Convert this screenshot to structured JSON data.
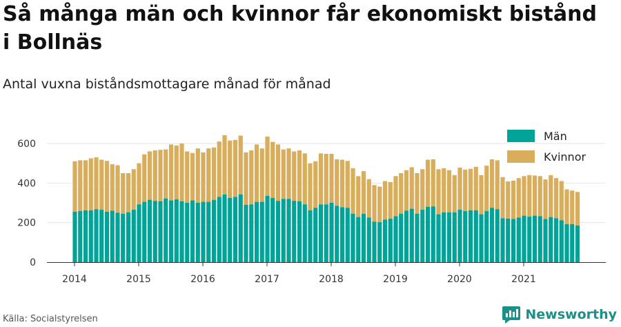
{
  "header": {
    "title": "Så många män och kvinnor får ekonomiskt bistånd i Bollnäs",
    "subtitle": "Antal vuxna biståndsmottagare månad för månad"
  },
  "footer": {
    "source": "Källa: Socialstyrelsen",
    "brand": "Newsworthy"
  },
  "colors": {
    "men": "#00a398",
    "women": "#d8ad5c",
    "grid": "#e6e6e6",
    "brand": "#1b8f88"
  },
  "chart_data": {
    "type": "bar",
    "stacked": true,
    "title": "",
    "xlabel": "",
    "ylabel": "",
    "ylim": [
      0,
      700
    ],
    "yticks": [
      "0",
      "200",
      "400",
      "600"
    ],
    "xticks": [
      "2014",
      "2015",
      "2016",
      "2017",
      "2018",
      "2019",
      "2020",
      "2021"
    ],
    "x_start": "2014-01",
    "legend_position": "top-right",
    "grid": true,
    "series": [
      {
        "name": "Män",
        "values": [
          255,
          258,
          262,
          262,
          268,
          265,
          255,
          260,
          250,
          245,
          252,
          265,
          292,
          305,
          315,
          310,
          308,
          322,
          312,
          318,
          308,
          300,
          312,
          300,
          305,
          305,
          315,
          330,
          342,
          325,
          330,
          342,
          290,
          292,
          305,
          305,
          335,
          325,
          310,
          320,
          320,
          310,
          308,
          292,
          262,
          275,
          292,
          292,
          300,
          285,
          278,
          275,
          245,
          228,
          245,
          225,
          205,
          202,
          215,
          220,
          232,
          245,
          260,
          270,
          245,
          265,
          280,
          282,
          242,
          252,
          252,
          252,
          265,
          258,
          262,
          262,
          242,
          258,
          275,
          268,
          222,
          220,
          218,
          225,
          235,
          230,
          235,
          232,
          218,
          228,
          222,
          212,
          192,
          192,
          185
        ],
        "totals": [
          510,
          515,
          515,
          525,
          530,
          518,
          512,
          495,
          490,
          450,
          450,
          470,
          500,
          545,
          560,
          565,
          568,
          570,
          595,
          590,
          600,
          560,
          552,
          575,
          555,
          575,
          580,
          610,
          642,
          615,
          618,
          640,
          555,
          565,
          595,
          575,
          635,
          608,
          595,
          570,
          575,
          560,
          565,
          550,
          500,
          510,
          550,
          548,
          548,
          520,
          518,
          512,
          475,
          435,
          460,
          420,
          390,
          382,
          410,
          405,
          435,
          450,
          465,
          480,
          450,
          470,
          518,
          520,
          470,
          475,
          465,
          440,
          478,
          468,
          472,
          482,
          440,
          488,
          520,
          515,
          430,
          408,
          412,
          425,
          435,
          440,
          438,
          435,
          418,
          440,
          425,
          410,
          368,
          362,
          355
        ]
      },
      {
        "name": "Kvinnor"
      }
    ]
  }
}
